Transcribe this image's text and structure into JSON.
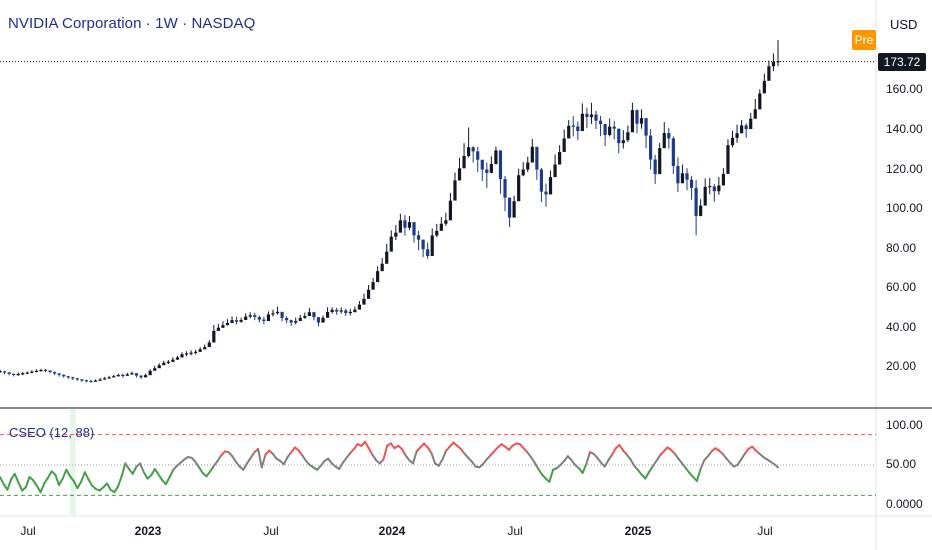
{
  "header": {
    "title": "NVIDIA Corporation · 1W · NASDAQ",
    "currency": "USD",
    "pre_badge": "Pre",
    "last_price": "173.72"
  },
  "colors": {
    "up": "#131722",
    "down": "#1e3a8a",
    "oscillator_high": "#ef5350",
    "oscillator_mid": "#808080",
    "oscillator_low": "#43a047",
    "pre_badge": "#ff9800"
  },
  "chart_data": [
    {
      "type": "candlestick",
      "title": "NVIDIA Corporation · 1W · NASDAQ",
      "ylim": [
        0,
        185
      ],
      "yticks": [
        "20.00",
        "40.00",
        "60.00",
        "80.00",
        "100.00",
        "120.00",
        "140.00",
        "160.00"
      ],
      "xticks": [
        "Jul",
        "2023",
        "Jul",
        "2024",
        "Jul",
        "2025",
        "Jul"
      ],
      "last_price": 173.72,
      "series": [
        {
          "name": "NVDA weekly close",
          "values": [
            18.2,
            17.8,
            17.1,
            16.5,
            16.9,
            17.2,
            17.6,
            18.1,
            18.5,
            18.9,
            18.7,
            18.0,
            17.3,
            16.6,
            15.9,
            15.3,
            14.8,
            14.2,
            13.8,
            13.4,
            13.1,
            13.6,
            14.2,
            14.8,
            15.3,
            15.9,
            16.4,
            16.1,
            16.8,
            17.4,
            16.2,
            15.3,
            16.4,
            18.6,
            19.9,
            21.4,
            22.6,
            23.1,
            24.2,
            25.3,
            26.9,
            27.2,
            27.6,
            28.1,
            29.4,
            30.5,
            32.8,
            38.6,
            40.2,
            41.5,
            42.6,
            44.0,
            43.2,
            44.1,
            45.8,
            46.5,
            45.6,
            44.3,
            43.6,
            46.9,
            47.5,
            48.2,
            45.1,
            44.0,
            42.8,
            43.6,
            45.2,
            46.1,
            48.0,
            45.5,
            42.8,
            45.2,
            48.1,
            49.2,
            48.3,
            48.9,
            47.6,
            48.1,
            49.3,
            51.8,
            54.7,
            59.3,
            63.1,
            68.6,
            72.3,
            78.4,
            85.9,
            87.9,
            94.1,
            90.4,
            93.2,
            86.6,
            84.4,
            79.6,
            76.2,
            86.5,
            88.8,
            92.4,
            94.1,
            104.0,
            114.1,
            120.2,
            126.4,
            130.8,
            128.7,
            124.5,
            119.6,
            117.9,
            122.4,
            129.2,
            114.8,
            105.5,
            95.5,
            103.7,
            116.7,
            119.6,
            123.1,
            131.0,
            119.6,
            108.5,
            107.1,
            115.8,
            122.1,
            128.4,
            135.2,
            141.5,
            141.2,
            138.9,
            147.6,
            145.9,
            147.2,
            144.1,
            142.4,
            136.9,
            141.1,
            140.1,
            132.8,
            134.3,
            138.3,
            149.4,
            142.6,
            145.4,
            136.6,
            124.6,
            117.3,
            130.3,
            137.9,
            135.2,
            121.4,
            112.7,
            117.7,
            114.5,
            110.4,
            96.3,
            101.5,
            110.9,
            111.1,
            108.7,
            111.6,
            117.4,
            131.8,
            135.5,
            137.8,
            141.7,
            139.9,
            145.1,
            149.8,
            157.8,
            164.1,
            171.4,
            173.6,
            173.72
          ]
        },
        {
          "name": "upper wick",
          "values": [
            19.1,
            18.6,
            18.0,
            17.2,
            17.8,
            18.0,
            18.3,
            18.9,
            19.3,
            19.6,
            19.5,
            18.9,
            18.2,
            17.4,
            16.8,
            16.1,
            15.6,
            15.0,
            14.5,
            14.1,
            13.9,
            14.3,
            15.0,
            15.5,
            16.1,
            16.6,
            17.2,
            17.1,
            17.5,
            18.2,
            17.4,
            16.4,
            17.2,
            19.3,
            21.0,
            22.3,
            23.6,
            24.0,
            25.4,
            26.1,
            27.9,
            28.4,
            28.9,
            29.1,
            30.4,
            31.8,
            33.9,
            41.6,
            42.1,
            43.4,
            44.5,
            45.9,
            45.8,
            45.3,
            47.4,
            48.0,
            47.7,
            46.3,
            45.7,
            48.4,
            49.3,
            50.8,
            48.1,
            46.0,
            44.3,
            45.3,
            46.7,
            47.8,
            50.1,
            48.1,
            45.5,
            46.3,
            50.5,
            50.5,
            50.2,
            50.5,
            49.8,
            49.6,
            50.8,
            53.6,
            57.3,
            61.6,
            65.2,
            71.0,
            75.2,
            82.3,
            89.1,
            91.7,
            97.4,
            96.7,
            96.3,
            92.8,
            88.9,
            84.5,
            82.9,
            90.0,
            92.3,
            95.8,
            97.9,
            107.9,
            118.1,
            125.5,
            132.8,
            140.7,
            131.3,
            130.9,
            123.4,
            123.1,
            126.2,
            131.1,
            124.3,
            116.3,
            104.7,
            106.5,
            120.0,
            123.3,
            126.0,
            134.9,
            122.7,
            120.4,
            112.5,
            119.1,
            127.1,
            131.8,
            139.7,
            144.4,
            146.4,
            143.8,
            152.8,
            150.6,
            153.1,
            149.1,
            146.5,
            142.2,
            145.2,
            144.0,
            139.6,
            139.3,
            141.7,
            153.1,
            149.7,
            149.8,
            143.0,
            139.9,
            127.0,
            132.9,
            143.4,
            140.5,
            136.2,
            125.7,
            122.1,
            120.2,
            116.3,
            114.3,
            104.7,
            115.1,
            115.4,
            112.3,
            115.9,
            120.3,
            134.8,
            139.0,
            142.1,
            144.4,
            142.8,
            148.0,
            155.0,
            159.9,
            167.7,
            174.2,
            177.8,
            184.5
          ]
        },
        {
          "name": "lower wick",
          "values": [
            17.5,
            16.9,
            16.3,
            15.8,
            16.1,
            16.4,
            16.9,
            17.3,
            17.8,
            18.2,
            17.9,
            17.3,
            16.5,
            15.7,
            15.1,
            14.5,
            14.0,
            13.6,
            13.1,
            12.8,
            12.6,
            13.0,
            13.5,
            14.1,
            14.6,
            15.2,
            15.7,
            15.2,
            16.0,
            16.6,
            15.3,
            14.6,
            15.7,
            17.2,
            18.9,
            20.3,
            21.5,
            22.0,
            22.9,
            24.1,
            25.6,
            25.9,
            26.3,
            26.8,
            28.0,
            29.3,
            31.1,
            35.3,
            38.9,
            40.1,
            41.3,
            42.5,
            41.8,
            42.7,
            44.2,
            44.9,
            44.0,
            42.8,
            41.9,
            44.6,
            45.8,
            46.8,
            43.5,
            42.4,
            41.1,
            41.9,
            43.6,
            44.7,
            46.2,
            43.9,
            40.9,
            42.9,
            46.5,
            47.3,
            46.7,
            47.3,
            46.1,
            46.4,
            47.8,
            49.9,
            52.6,
            56.8,
            60.6,
            66.0,
            69.6,
            75.2,
            81.8,
            84.2,
            89.9,
            86.4,
            89.2,
            82.9,
            79.1,
            75.6,
            74.8,
            83.4,
            85.7,
            89.1,
            91.3,
            100.4,
            109.3,
            115.6,
            121.2,
            125.6,
            123.1,
            118.4,
            113.8,
            110.4,
            117.8,
            122.1,
            107.4,
            98.7,
            90.7,
            98.2,
            112.5,
            116.2,
            118.3,
            126.6,
            114.4,
            103.3,
            100.9,
            111.1,
            118.5,
            124.5,
            130.8,
            137.3,
            136.2,
            134.4,
            141.2,
            140.3,
            142.5,
            139.9,
            136.3,
            131.4,
            136.2,
            134.6,
            127.8,
            130.1,
            133.4,
            144.4,
            137.8,
            140.1,
            130.3,
            119.6,
            112.4,
            125.9,
            133.3,
            130.1,
            117.3,
            108.3,
            112.8,
            109.2,
            104.5,
            86.6,
            96.1,
            106.0,
            107.2,
            103.4,
            106.9,
            113.2,
            126.7,
            130.7,
            133.0,
            137.9,
            135.5,
            140.4,
            145.6,
            153.4,
            158.7,
            166.0,
            168.9,
            171.4
          ]
        }
      ]
    },
    {
      "type": "line",
      "title": "CSEO (12, 88)",
      "ylim": [
        0,
        100
      ],
      "yticks": [
        "100.00",
        "50.00",
        "0.0000"
      ],
      "reference_levels": [
        88,
        50,
        12
      ],
      "series": [
        {
          "name": "CSEO",
          "values": [
            35,
            26,
            19,
            32,
            39,
            28,
            18,
            22,
            35,
            31,
            24,
            16,
            27,
            34,
            42,
            38,
            25,
            33,
            44,
            36,
            30,
            21,
            29,
            41,
            32,
            24,
            20,
            18,
            22,
            27,
            19,
            16,
            23,
            36,
            52,
            45,
            39,
            48,
            52,
            41,
            33,
            37,
            45,
            38,
            31,
            26,
            35,
            44,
            49,
            53,
            57,
            60,
            59,
            54,
            47,
            40,
            36,
            42,
            49,
            55,
            62,
            67,
            66,
            61,
            54,
            48,
            44,
            52,
            59,
            66,
            70,
            47,
            63,
            68,
            64,
            58,
            55,
            51,
            60,
            66,
            72,
            68,
            62,
            55,
            50,
            47,
            44,
            49,
            55,
            58,
            52,
            48,
            45,
            53,
            59,
            65,
            70,
            76,
            74,
            79,
            71,
            63,
            56,
            52,
            57,
            74,
            77,
            71,
            74,
            70,
            62,
            56,
            52,
            67,
            72,
            77,
            72,
            65,
            52,
            49,
            57,
            68,
            73,
            78,
            74,
            70,
            64,
            59,
            54,
            48,
            47,
            51,
            57,
            62,
            67,
            72,
            76,
            73,
            69,
            74,
            77,
            76,
            71,
            66,
            60,
            53,
            45,
            38,
            33,
            29,
            44,
            46,
            50,
            55,
            61,
            56,
            50,
            46,
            40,
            51,
            66,
            64,
            59,
            53,
            48,
            56,
            63,
            71,
            75,
            68,
            63,
            57,
            49,
            44,
            38,
            33,
            41,
            48,
            55,
            62,
            67,
            72,
            69,
            64,
            58,
            52,
            46,
            40,
            35,
            30,
            45,
            56,
            61,
            67,
            71,
            68,
            64,
            58,
            53,
            48,
            50,
            57,
            64,
            70,
            73,
            68,
            64,
            60,
            57,
            54,
            51,
            47
          ]
        }
      ]
    }
  ]
}
